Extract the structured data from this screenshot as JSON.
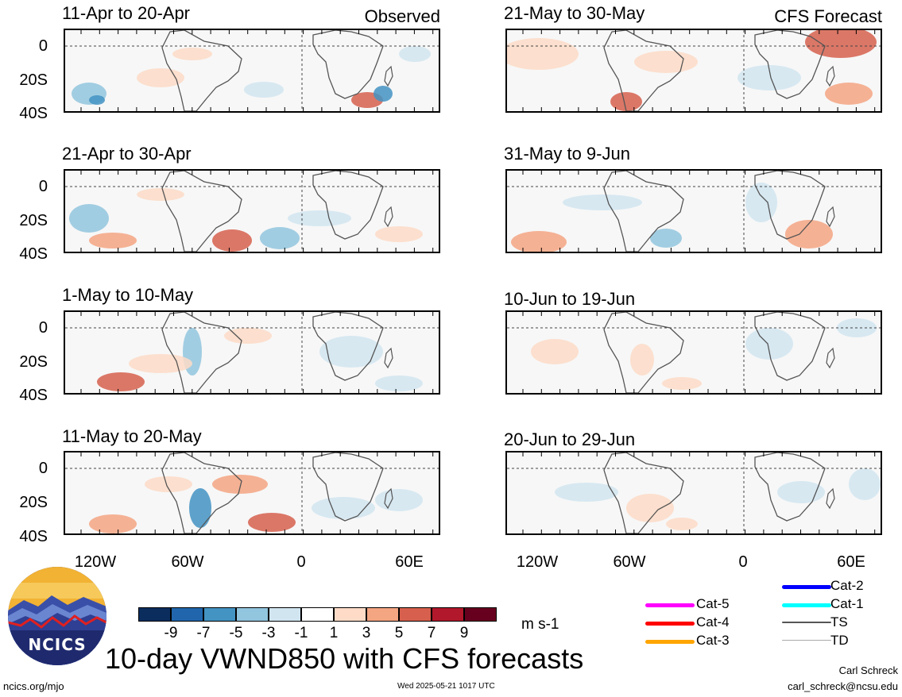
{
  "header": {
    "observed_label": "Observed",
    "forecast_label": "CFS Forecast"
  },
  "panels_left": [
    {
      "title": "11-Apr to 20-Apr"
    },
    {
      "title": "21-Apr to 30-Apr"
    },
    {
      "title": "1-May to 10-May"
    },
    {
      "title": "11-May to 20-May"
    }
  ],
  "panels_right": [
    {
      "title": "21-May to 30-May"
    },
    {
      "title": "31-May to 9-Jun"
    },
    {
      "title": "10-Jun to 19-Jun"
    },
    {
      "title": "20-Jun to 29-Jun"
    }
  ],
  "y_axis_labels": [
    "0",
    "20S",
    "40S"
  ],
  "x_axis_labels": [
    "120W",
    "60W",
    "0",
    "60E"
  ],
  "colorbar": {
    "colors": [
      "#0b2d5e",
      "#2166ac",
      "#4393c3",
      "#92c5de",
      "#d1e5f0",
      "#ffffff",
      "#fddbc7",
      "#f4a582",
      "#d6604d",
      "#b2182b",
      "#67001f"
    ],
    "labels": [
      "-9",
      "-7",
      "-5",
      "-3",
      "-1",
      "1",
      "3",
      "5",
      "7",
      "9"
    ],
    "units": "m s-1"
  },
  "legend": [
    {
      "label": "Cat-5",
      "color": "#ff00ff"
    },
    {
      "label": "Cat-4",
      "color": "#ff0000"
    },
    {
      "label": "Cat-3",
      "color": "#ffa500"
    },
    {
      "label": "Cat-2",
      "color": "#0000ff"
    },
    {
      "label": "Cat-1",
      "color": "#00ffff"
    },
    {
      "label": "TS",
      "color": "#555555"
    },
    {
      "label": "TD",
      "color": "#aaaaaa"
    }
  ],
  "logo": {
    "text": "NCICS"
  },
  "footer": {
    "main_title": "10-day VWND850 with CFS forecasts",
    "site": "ncics.org/mjo",
    "timestamp": "Wed 2025-05-21 1017 UTC",
    "author": "Carl Schreck",
    "email": "carl_schreck@ncsu.edu"
  }
}
